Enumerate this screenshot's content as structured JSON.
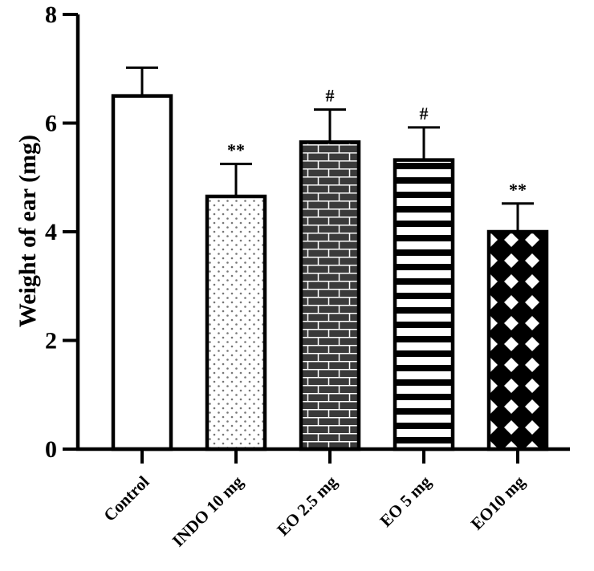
{
  "chart_data": {
    "type": "bar",
    "ylabel": "Weight of ear (mg)",
    "ylim": [
      0,
      8
    ],
    "yticks": [
      0,
      2,
      4,
      6,
      8
    ],
    "grid": false,
    "categories": [
      "Control",
      "INDO 10 mg",
      "EO 2.5 mg",
      "EO 5 mg",
      "EO10 mg"
    ],
    "values": [
      6.5,
      4.65,
      5.65,
      5.32,
      4.0
    ],
    "errors": [
      0.52,
      0.6,
      0.6,
      0.6,
      0.52
    ],
    "annotations": [
      "",
      "**",
      "#",
      "#",
      "**"
    ],
    "patterns": [
      "blank",
      "dots",
      "bricks",
      "horizontal-stripes",
      "crosshatch"
    ]
  }
}
